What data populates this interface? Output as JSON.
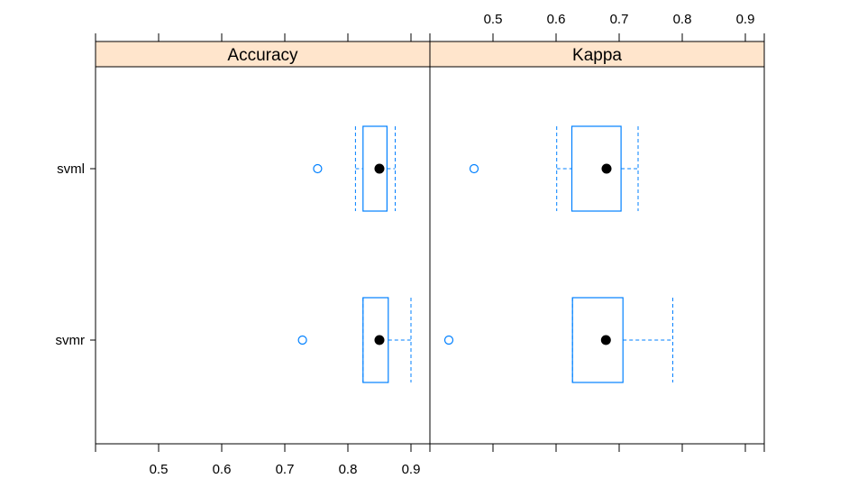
{
  "chart_data": {
    "type": "box",
    "categories": [
      "svml",
      "svmr"
    ],
    "x_ticks": [
      0.5,
      0.6,
      0.7,
      0.8,
      0.9
    ],
    "xlim": [
      0.4,
      0.93
    ],
    "colors": {
      "strip": "#ffe5cc",
      "box": "#0080ff",
      "median": "#000000",
      "frame": "#000000"
    },
    "panels": [
      {
        "strip_label": "Accuracy",
        "boxes": [
          {
            "category": "svml",
            "whisker_low": 0.812,
            "q1": 0.824,
            "median": 0.85,
            "q3": 0.862,
            "whisker_high": 0.875,
            "outliers": [
              0.752
            ]
          },
          {
            "category": "svmr",
            "whisker_low": 0.824,
            "q1": 0.824,
            "median": 0.85,
            "q3": 0.864,
            "whisker_high": 0.9,
            "outliers": [
              0.728
            ]
          }
        ]
      },
      {
        "strip_label": "Kappa",
        "boxes": [
          {
            "category": "svml",
            "whisker_low": 0.601,
            "q1": 0.625,
            "median": 0.68,
            "q3": 0.703,
            "whisker_high": 0.73,
            "outliers": [
              0.47
            ]
          },
          {
            "category": "svmr",
            "whisker_low": 0.626,
            "q1": 0.626,
            "median": 0.679,
            "q3": 0.706,
            "whisker_high": 0.785,
            "outliers": [
              0.43
            ]
          }
        ]
      }
    ]
  }
}
